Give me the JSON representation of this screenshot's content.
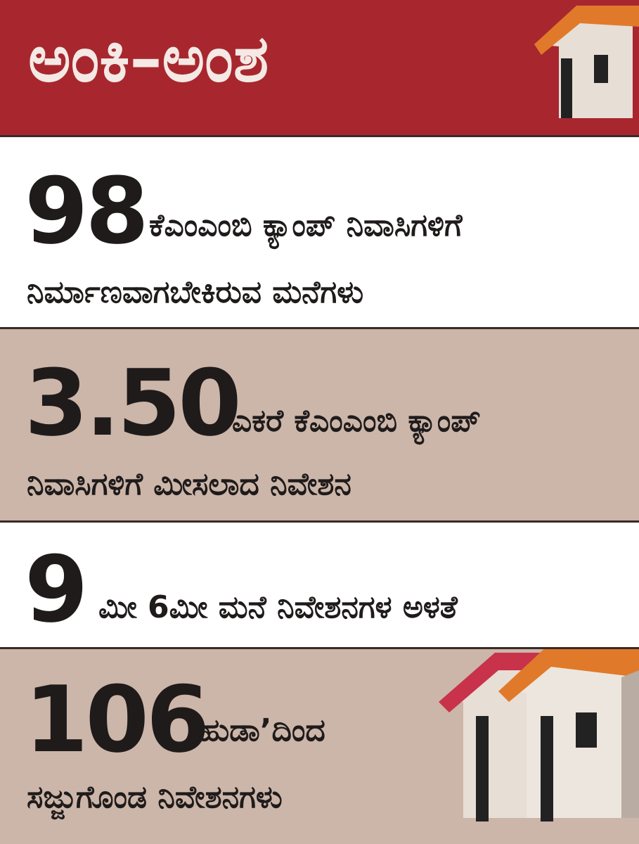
{
  "header": {
    "title": "ಅಂಕಿ–ಅಂಶ"
  },
  "items": [
    {
      "number": "98",
      "lines": [
        "ಕೆಎಂಎಂಬಿ ಕ್ಯಾಂಪ್ ನಿವಾಸಿಗಳಿಗೆ",
        "ನಿರ್ಮಾಣವಾಗಬೇಕಿರುವ ಮನೆಗಳು"
      ]
    },
    {
      "number": "3.50",
      "lines": [
        "ಎಕರೆ ಕೆಎಂಎಂಬಿ ಕ್ಯಾಂಪ್",
        "ನಿವಾಸಿಗಳಿಗೆ ಮೀಸಲಾದ ನಿವೇಶನ"
      ]
    },
    {
      "number": "9",
      "lines": [
        "ಮೀ 6ಮೀ ಮನೆ ನಿವೇಶನಗಳ ಅಳತೆ"
      ]
    },
    {
      "number": "106",
      "lines": [
        "‘ಹುಡಾ’ದಿಂದ",
        "ಸಜ್ಜುಗೊಂಡ ನಿವೇಶನಗಳು"
      ]
    }
  ]
}
